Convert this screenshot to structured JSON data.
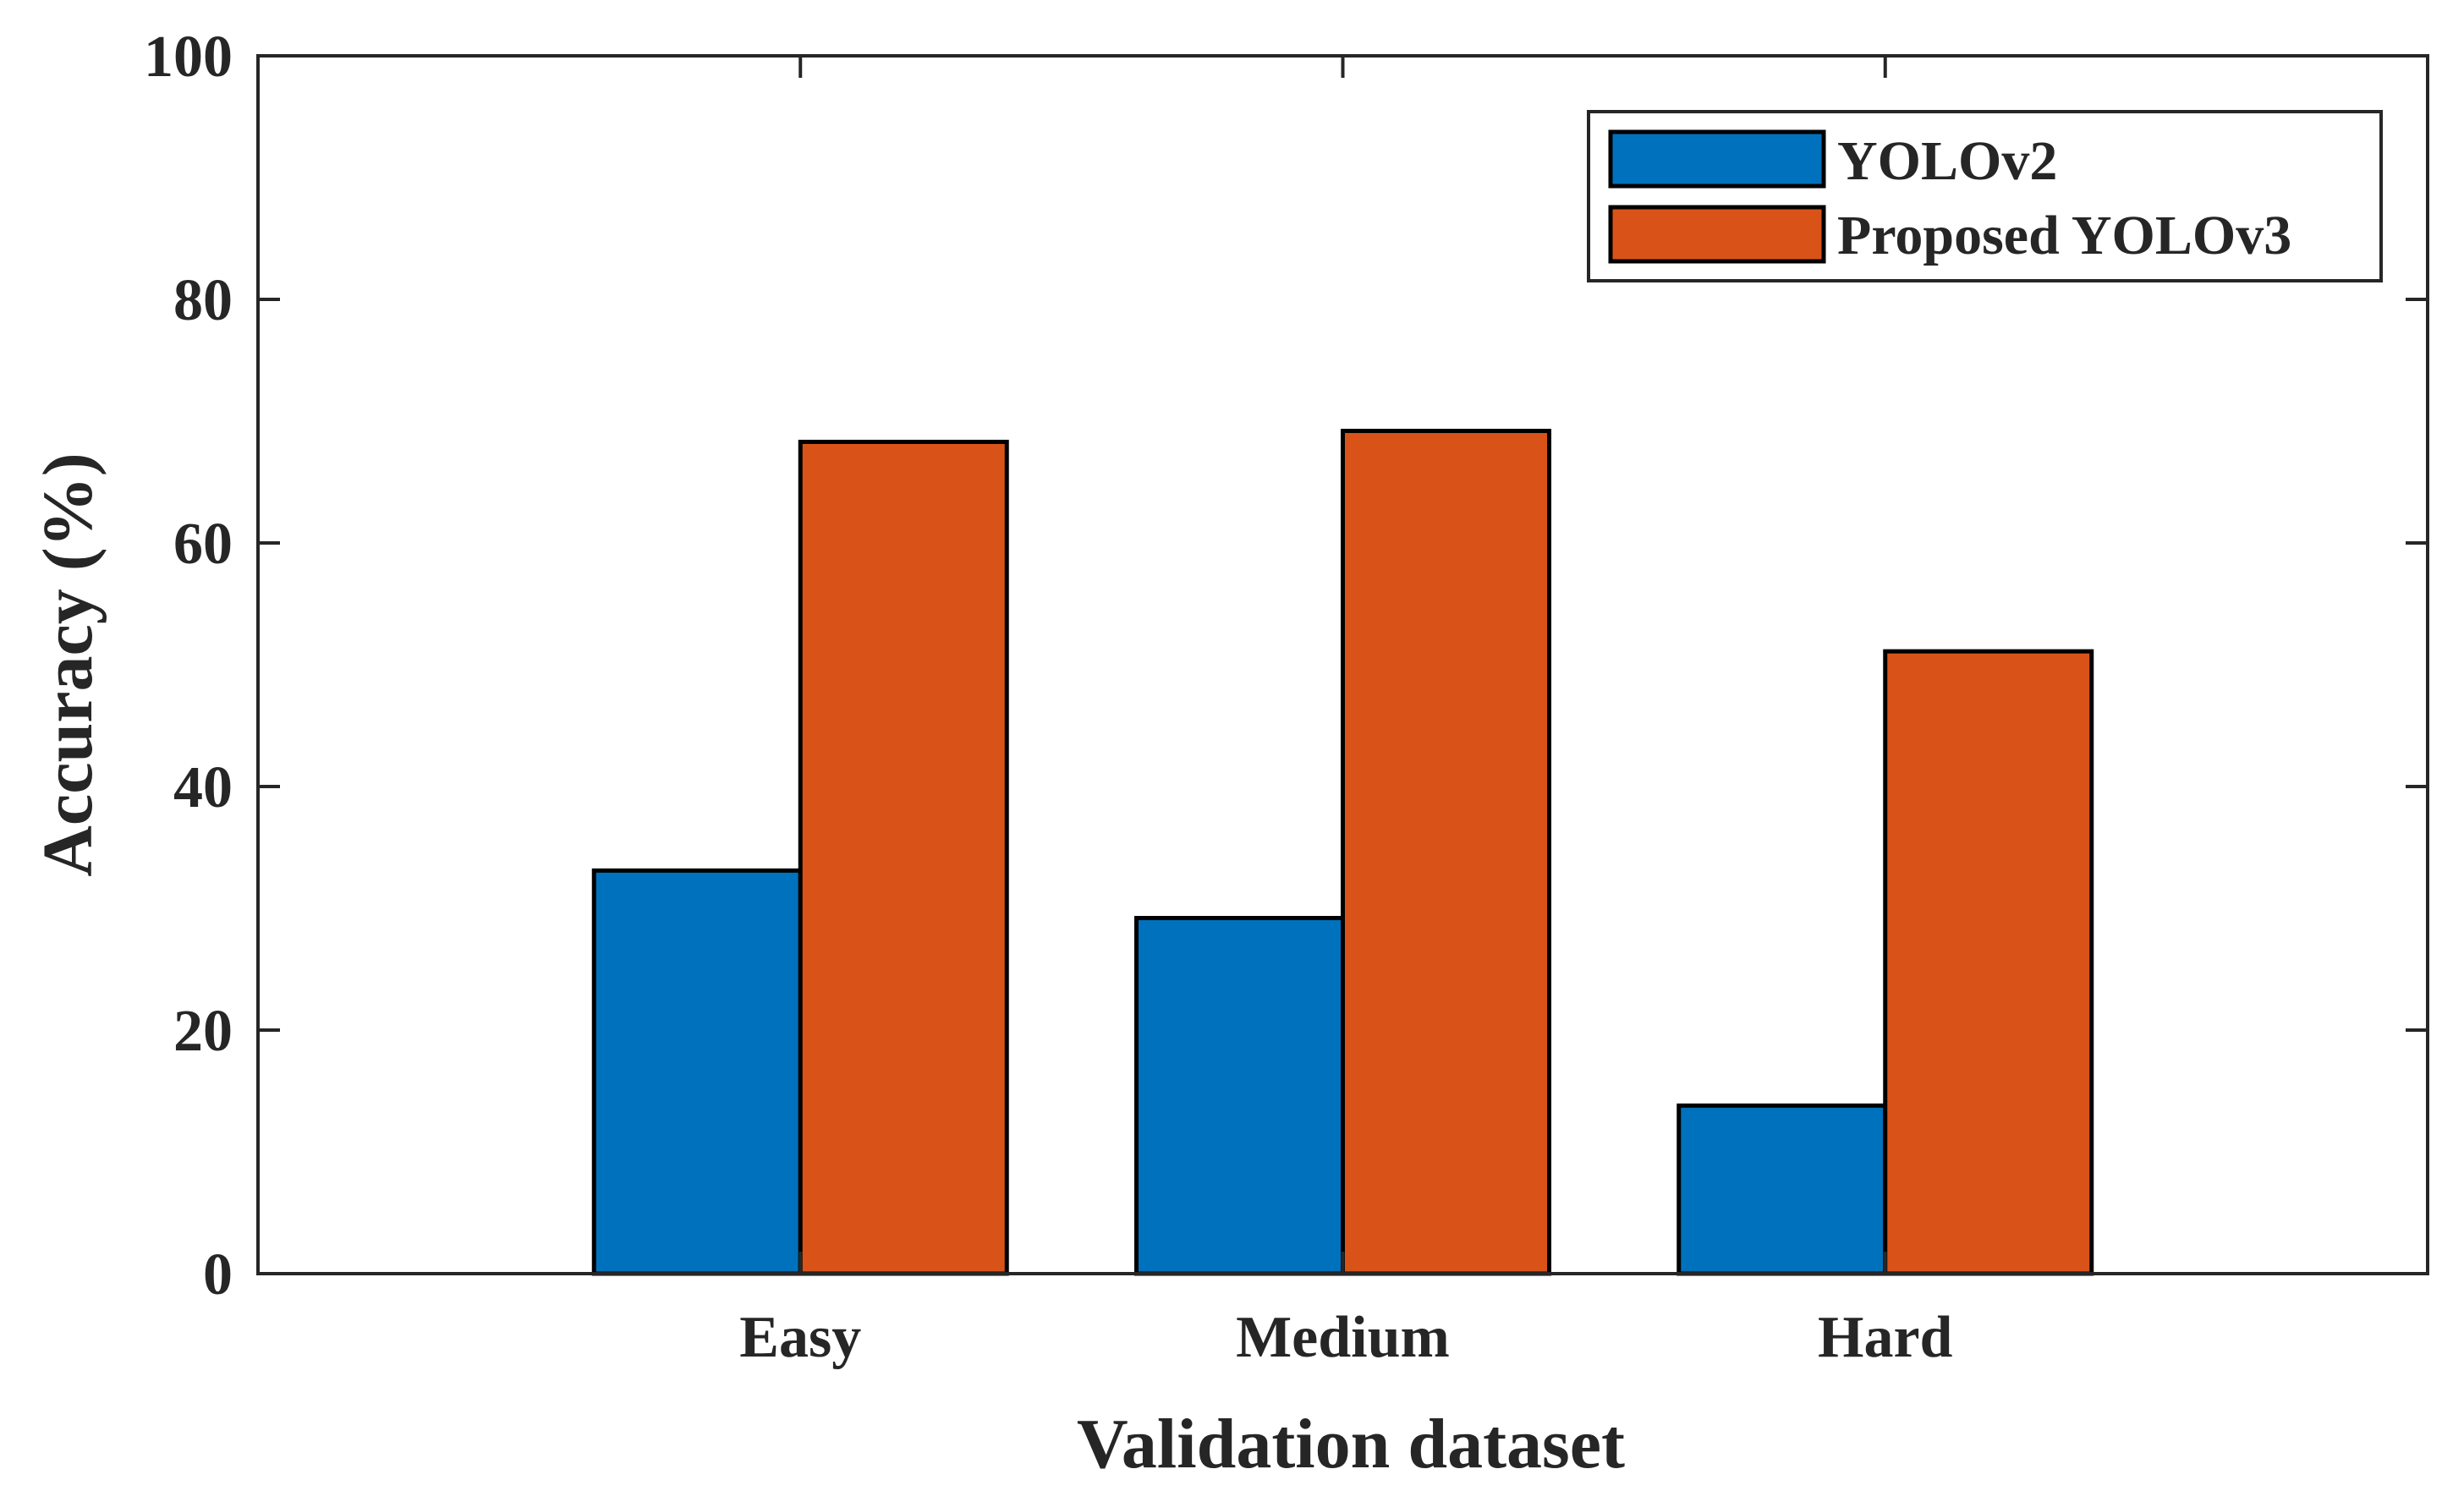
{
  "chart_data": {
    "type": "bar",
    "title": "",
    "xlabel": "Validation dataset",
    "ylabel": "Accuracy (%)",
    "categories": [
      "Easy",
      "Medium",
      "Hard"
    ],
    "series": [
      {
        "name": "YOLOv2",
        "color": "#0072BD",
        "values": [
          33.1,
          29.2,
          13.8
        ]
      },
      {
        "name": "Proposed YOLOv3",
        "color": "#D95319",
        "values": [
          68.3,
          69.2,
          51.1
        ]
      }
    ],
    "ylim": [
      0,
      100
    ],
    "yticks": [
      0,
      20,
      40,
      60,
      80,
      100
    ],
    "grid": false,
    "legend_position": "top-right"
  }
}
